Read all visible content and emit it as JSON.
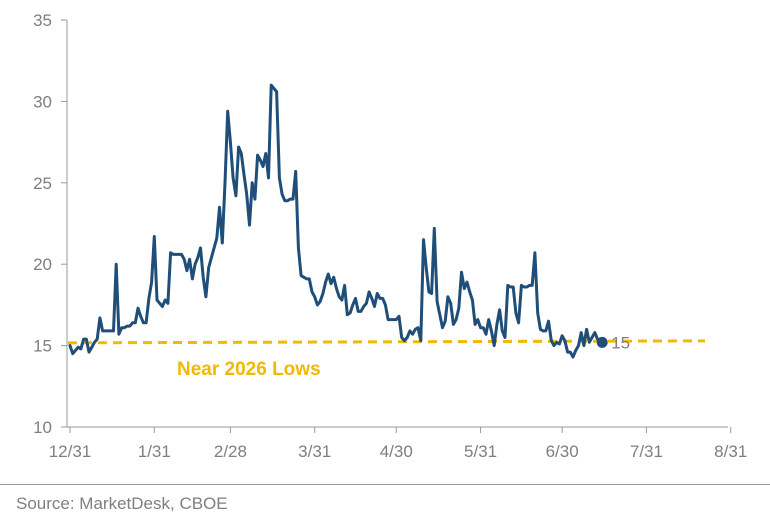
{
  "chart_data": {
    "type": "line",
    "title": "",
    "xlabel": "",
    "ylabel": "",
    "ylim": [
      10,
      35
    ],
    "yticks": [
      10,
      15,
      20,
      25,
      30,
      35
    ],
    "xlim": [
      0,
      244
    ],
    "xticks": [
      {
        "label": "12/31",
        "day": 0
      },
      {
        "label": "1/31",
        "day": 31
      },
      {
        "label": "2/28",
        "day": 59
      },
      {
        "label": "3/31",
        "day": 90
      },
      {
        "label": "4/30",
        "day": 120
      },
      {
        "label": "5/31",
        "day": 151
      },
      {
        "label": "6/30",
        "day": 181
      },
      {
        "label": "7/31",
        "day": 212
      },
      {
        "label": "8/31",
        "day": 243
      }
    ],
    "grid": false,
    "legend": "none",
    "series": [
      {
        "color": "#1f4e79",
        "points": [
          [
            0,
            15.0
          ],
          [
            1,
            14.5
          ],
          [
            2,
            14.7
          ],
          [
            3,
            14.9
          ],
          [
            4,
            14.8
          ],
          [
            5,
            15.4
          ],
          [
            6,
            15.4
          ],
          [
            7,
            14.6
          ],
          [
            8,
            14.9
          ],
          [
            9,
            15.2
          ],
          [
            10,
            15.4
          ],
          [
            11,
            16.7
          ],
          [
            12,
            15.9
          ],
          [
            13,
            15.9
          ],
          [
            14,
            15.9
          ],
          [
            15,
            15.9
          ],
          [
            16,
            15.9
          ],
          [
            17,
            20.0
          ],
          [
            18,
            15.7
          ],
          [
            19,
            16.1
          ],
          [
            20,
            16.1
          ],
          [
            21,
            16.2
          ],
          [
            22,
            16.2
          ],
          [
            23,
            16.4
          ],
          [
            24,
            16.4
          ],
          [
            25,
            17.3
          ],
          [
            26,
            16.8
          ],
          [
            27,
            16.4
          ],
          [
            28,
            16.4
          ],
          [
            29,
            17.9
          ],
          [
            30,
            18.9
          ],
          [
            31,
            21.7
          ],
          [
            32,
            17.8
          ],
          [
            33,
            17.6
          ],
          [
            34,
            17.4
          ],
          [
            35,
            17.8
          ],
          [
            36,
            17.6
          ],
          [
            37,
            20.7
          ],
          [
            38,
            20.6
          ],
          [
            39,
            20.6
          ],
          [
            40,
            20.6
          ],
          [
            41,
            20.6
          ],
          [
            42,
            20.3
          ],
          [
            43,
            19.6
          ],
          [
            44,
            20.3
          ],
          [
            45,
            19.1
          ],
          [
            46,
            20.0
          ],
          [
            47,
            20.4
          ],
          [
            48,
            21.0
          ],
          [
            49,
            19.2
          ],
          [
            50,
            18.0
          ],
          [
            51,
            19.8
          ],
          [
            52,
            20.4
          ],
          [
            53,
            21.0
          ],
          [
            54,
            21.6
          ],
          [
            55,
            23.5
          ],
          [
            56,
            21.3
          ],
          [
            57,
            25.0
          ],
          [
            58,
            29.4
          ],
          [
            59,
            27.5
          ],
          [
            60,
            25.3
          ],
          [
            61,
            24.2
          ],
          [
            62,
            27.2
          ],
          [
            63,
            26.8
          ],
          [
            64,
            25.5
          ],
          [
            65,
            24.3
          ],
          [
            66,
            22.4
          ],
          [
            67,
            25.0
          ],
          [
            68,
            24.0
          ],
          [
            69,
            26.7
          ],
          [
            70,
            26.4
          ],
          [
            71,
            26.0
          ],
          [
            72,
            26.8
          ],
          [
            73,
            25.3
          ],
          [
            74,
            31.0
          ],
          [
            75,
            30.8
          ],
          [
            76,
            30.6
          ],
          [
            77,
            25.3
          ],
          [
            78,
            24.3
          ],
          [
            79,
            23.9
          ],
          [
            80,
            23.9
          ],
          [
            81,
            24.0
          ],
          [
            82,
            24.0
          ],
          [
            83,
            25.7
          ],
          [
            84,
            21.0
          ],
          [
            85,
            19.3
          ],
          [
            86,
            19.2
          ],
          [
            87,
            19.1
          ],
          [
            88,
            19.1
          ],
          [
            89,
            18.3
          ],
          [
            90,
            18.0
          ],
          [
            91,
            17.5
          ],
          [
            92,
            17.7
          ],
          [
            93,
            18.2
          ],
          [
            94,
            18.9
          ],
          [
            95,
            19.4
          ],
          [
            96,
            18.8
          ],
          [
            97,
            19.2
          ],
          [
            98,
            18.5
          ],
          [
            99,
            18.0
          ],
          [
            100,
            17.8
          ],
          [
            101,
            18.7
          ],
          [
            102,
            16.9
          ],
          [
            103,
            17.0
          ],
          [
            104,
            17.5
          ],
          [
            105,
            17.9
          ],
          [
            106,
            17.1
          ],
          [
            107,
            17.1
          ],
          [
            108,
            17.4
          ],
          [
            109,
            17.6
          ],
          [
            110,
            18.3
          ],
          [
            111,
            17.9
          ],
          [
            112,
            17.4
          ],
          [
            113,
            18.2
          ],
          [
            114,
            17.9
          ],
          [
            115,
            17.9
          ],
          [
            116,
            17.5
          ],
          [
            117,
            16.6
          ],
          [
            118,
            16.6
          ],
          [
            119,
            16.6
          ],
          [
            120,
            16.6
          ],
          [
            121,
            16.8
          ],
          [
            122,
            15.5
          ],
          [
            123,
            15.3
          ],
          [
            124,
            15.5
          ],
          [
            125,
            15.9
          ],
          [
            126,
            15.7
          ],
          [
            127,
            16.0
          ],
          [
            128,
            16.1
          ],
          [
            129,
            15.3
          ],
          [
            130,
            21.5
          ],
          [
            131,
            19.8
          ],
          [
            132,
            18.3
          ],
          [
            133,
            18.2
          ],
          [
            134,
            22.2
          ],
          [
            135,
            17.7
          ],
          [
            136,
            16.9
          ],
          [
            137,
            16.1
          ],
          [
            138,
            16.5
          ],
          [
            139,
            18.0
          ],
          [
            140,
            17.6
          ],
          [
            141,
            16.3
          ],
          [
            142,
            16.6
          ],
          [
            143,
            17.3
          ],
          [
            144,
            19.5
          ],
          [
            145,
            18.5
          ],
          [
            146,
            18.9
          ],
          [
            147,
            18.3
          ],
          [
            148,
            17.8
          ],
          [
            149,
            16.3
          ],
          [
            150,
            16.6
          ],
          [
            151,
            16.1
          ],
          [
            152,
            16.1
          ],
          [
            153,
            15.7
          ],
          [
            154,
            16.6
          ],
          [
            155,
            15.9
          ],
          [
            156,
            15.0
          ],
          [
            157,
            16.3
          ],
          [
            158,
            17.2
          ],
          [
            159,
            15.9
          ],
          [
            160,
            15.5
          ],
          [
            161,
            18.7
          ],
          [
            162,
            18.6
          ],
          [
            163,
            18.6
          ],
          [
            164,
            17.0
          ],
          [
            165,
            16.4
          ],
          [
            166,
            18.7
          ],
          [
            167,
            18.6
          ],
          [
            168,
            18.6
          ],
          [
            169,
            18.7
          ],
          [
            170,
            18.7
          ],
          [
            171,
            20.7
          ],
          [
            172,
            17.0
          ],
          [
            173,
            16.0
          ],
          [
            174,
            15.9
          ],
          [
            175,
            15.9
          ],
          [
            176,
            16.5
          ],
          [
            177,
            15.3
          ],
          [
            178,
            15.0
          ],
          [
            179,
            15.2
          ],
          [
            180,
            15.1
          ],
          [
            181,
            15.6
          ],
          [
            182,
            15.3
          ],
          [
            183,
            14.6
          ],
          [
            184,
            14.6
          ],
          [
            185,
            14.3
          ],
          [
            186,
            14.7
          ],
          [
            187,
            15.0
          ],
          [
            188,
            15.8
          ],
          [
            189,
            15.0
          ],
          [
            190,
            16.0
          ],
          [
            191,
            15.2
          ],
          [
            192,
            15.5
          ],
          [
            193,
            15.8
          ],
          [
            194,
            15.4
          ],
          [
            195,
            15.2
          ]
        ]
      }
    ],
    "reference_line": {
      "value": 15.2,
      "color": "#f2b900",
      "style": "dashed"
    },
    "annotations": [
      {
        "text": "Near 2026 Lows",
        "color": "#f2b900"
      }
    ],
    "end_label": {
      "text": "15",
      "value": 15.2
    }
  },
  "footer": {
    "source": "Source: MarketDesk, CBOE"
  }
}
